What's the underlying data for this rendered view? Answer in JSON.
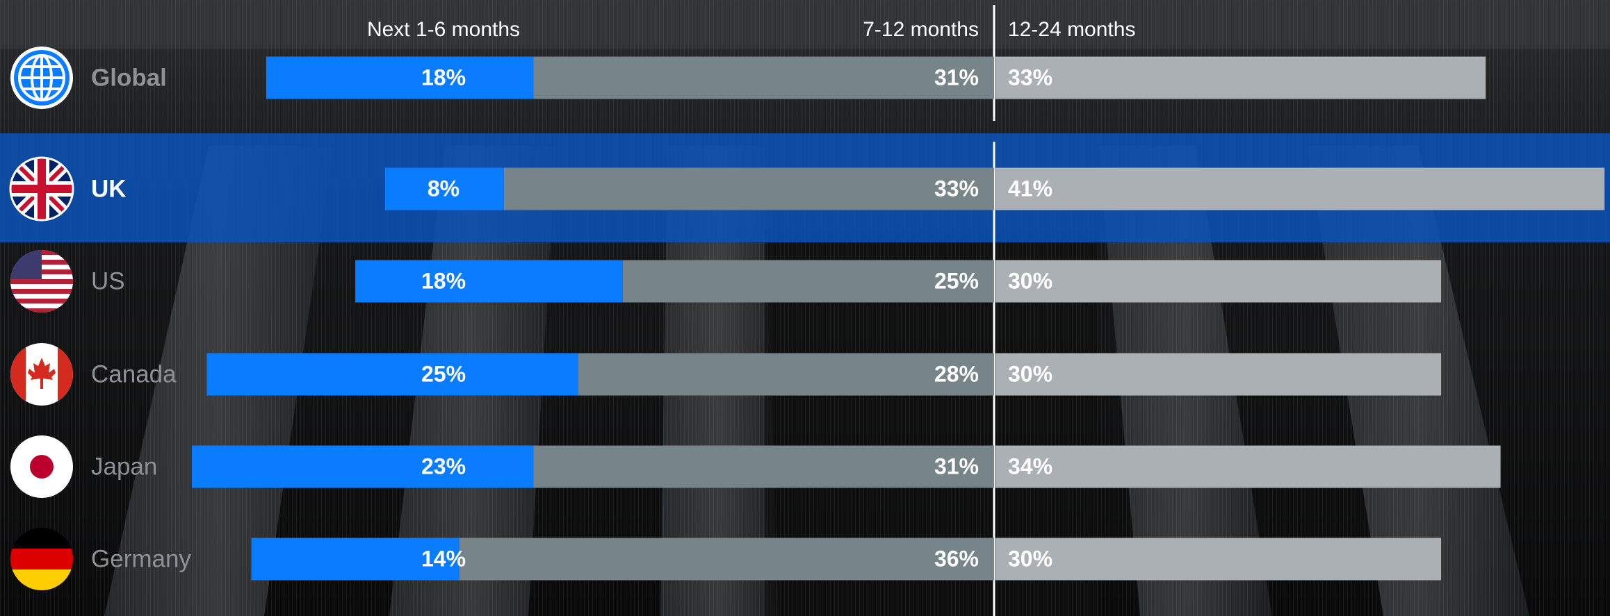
{
  "chart_data": {
    "type": "bar",
    "categories": [
      "Global",
      "UK",
      "US",
      "Canada",
      "Japan",
      "Germany"
    ],
    "highlight": "UK",
    "series": [
      {
        "name": "Next 1-6 months",
        "color": "#0a7cff",
        "values": [
          18,
          8,
          18,
          25,
          23,
          14
        ],
        "value_labels": [
          "18%",
          "8%",
          "18%",
          "25%",
          "23%",
          "14%"
        ]
      },
      {
        "name": "7-12 months",
        "color": "#77848a",
        "values": [
          31,
          33,
          25,
          28,
          31,
          36
        ],
        "value_labels": [
          "31%",
          "33%",
          "25%",
          "28%",
          "31%",
          "36%"
        ]
      },
      {
        "name": "12-24 months",
        "color": "#aab0b3",
        "values": [
          33,
          41,
          30,
          30,
          34,
          30
        ],
        "value_labels": [
          "33%",
          "41%",
          "30%",
          "30%",
          "34%",
          "30%"
        ]
      }
    ]
  }
}
